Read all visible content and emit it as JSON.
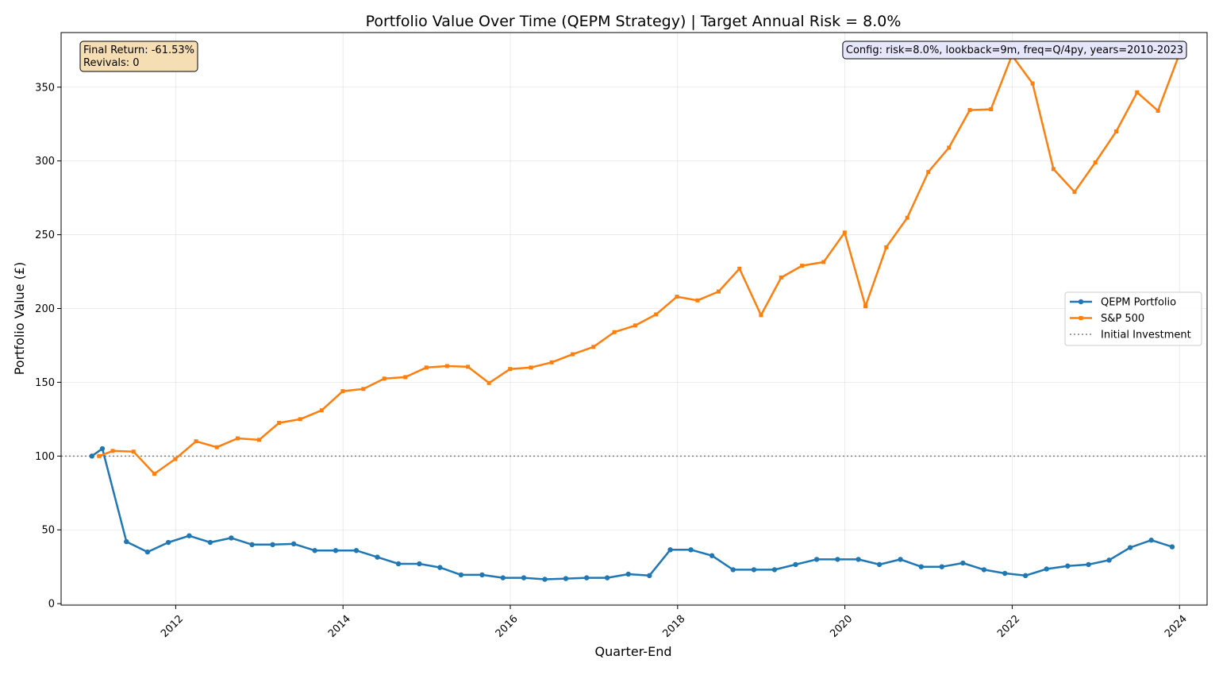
{
  "chart_data": {
    "type": "line",
    "title": "Portfolio Value Over Time (QEPM Strategy) | Target Annual Risk = 8.0%",
    "xlabel": "Quarter-End",
    "ylabel": "Portfolio Value (£)",
    "xlim": [
      2010.63,
      2024.33
    ],
    "ylim": [
      -1,
      387
    ],
    "x_ticks": [
      2012,
      2014,
      2016,
      2018,
      2020,
      2022,
      2024
    ],
    "x_tick_labels": [
      "2012",
      "2014",
      "2016",
      "2018",
      "2020",
      "2022",
      "2024"
    ],
    "y_ticks": [
      0,
      50,
      100,
      150,
      200,
      250,
      300,
      350
    ],
    "y_tick_labels": [
      "0",
      "50",
      "100",
      "150",
      "200",
      "250",
      "300",
      "350"
    ],
    "grid": true,
    "legend_position": "center-right",
    "series": [
      {
        "name": "QEPM Portfolio",
        "color": "#1f77b4",
        "marker": "circle",
        "x": [
          "2010-12-31",
          "2011-02-15",
          "2011-05-31",
          "2011-08-31",
          "2011-11-30",
          "2012-02-29",
          "2012-05-31",
          "2012-08-31",
          "2012-11-30",
          "2013-02-28",
          "2013-05-31",
          "2013-08-31",
          "2013-11-30",
          "2014-02-28",
          "2014-05-31",
          "2014-08-31",
          "2014-11-30",
          "2015-02-28",
          "2015-05-31",
          "2015-08-31",
          "2015-11-30",
          "2016-02-29",
          "2016-05-31",
          "2016-08-31",
          "2016-11-30",
          "2017-02-28",
          "2017-05-31",
          "2017-08-31",
          "2017-11-30",
          "2018-02-28",
          "2018-05-31",
          "2018-08-31",
          "2018-11-30",
          "2019-02-28",
          "2019-05-31",
          "2019-08-31",
          "2019-11-30",
          "2020-02-29",
          "2020-05-31",
          "2020-08-31",
          "2020-11-30",
          "2021-02-28",
          "2021-05-31",
          "2021-08-31",
          "2021-11-30",
          "2022-02-28",
          "2022-05-31",
          "2022-08-31",
          "2022-11-30",
          "2023-02-28",
          "2023-05-31",
          "2023-08-31",
          "2023-11-30"
        ],
        "values": [
          100,
          105,
          42,
          35,
          41.5,
          46,
          41.5,
          44.5,
          40,
          40,
          40.5,
          36,
          36,
          36,
          31.5,
          27,
          27,
          24.5,
          19.5,
          19.5,
          17.5,
          17.5,
          16.5,
          17,
          17.5,
          17.5,
          20,
          19,
          36.5,
          36.5,
          32.5,
          23,
          23,
          23,
          26.5,
          30,
          30,
          30,
          26.5,
          30,
          25,
          25,
          27.5,
          23,
          20.5,
          19,
          23.5,
          25.5,
          26.5,
          29.5,
          38,
          43,
          38.5
        ]
      },
      {
        "name": "S&P 500",
        "color": "#ff7f0e",
        "marker": "square",
        "x": [
          "2011-02-01",
          "2011-04-01",
          "2011-07-01",
          "2011-09-30",
          "2011-12-30",
          "2012-03-30",
          "2012-06-29",
          "2012-09-28",
          "2012-12-31",
          "2013-03-28",
          "2013-06-28",
          "2013-09-30",
          "2013-12-31",
          "2014-03-31",
          "2014-06-30",
          "2014-09-30",
          "2014-12-31",
          "2015-03-31",
          "2015-06-30",
          "2015-09-30",
          "2015-12-31",
          "2016-03-31",
          "2016-06-30",
          "2016-09-30",
          "2016-12-30",
          "2017-03-31",
          "2017-06-30",
          "2017-09-29",
          "2017-12-29",
          "2018-03-29",
          "2018-06-29",
          "2018-09-28",
          "2018-12-31",
          "2019-03-29",
          "2019-06-28",
          "2019-09-30",
          "2019-12-31",
          "2020-03-31",
          "2020-06-30",
          "2020-09-30",
          "2020-12-31",
          "2021-03-31",
          "2021-06-30",
          "2021-09-30",
          "2021-12-31",
          "2022-03-31",
          "2022-06-30",
          "2022-09-30",
          "2022-12-30",
          "2023-03-31",
          "2023-06-30",
          "2023-09-29",
          "2023-12-29"
        ],
        "values": [
          100,
          103.5,
          103,
          88,
          98,
          110,
          106,
          112,
          111,
          122.5,
          125,
          131,
          144,
          145.5,
          152.5,
          153.5,
          160,
          161,
          160.5,
          149.5,
          159,
          160,
          163.5,
          169,
          174,
          184,
          188.5,
          196,
          208,
          205.5,
          211.5,
          227,
          195.5,
          221,
          229,
          231.5,
          251.5,
          201.5,
          241.5,
          261.5,
          292.5,
          309,
          334.5,
          335,
          371.5,
          352.5,
          294.5,
          279,
          299,
          320,
          346.5,
          334,
          371.5
        ]
      },
      {
        "name": "Initial Investment",
        "color": "#808080",
        "style": "dotted",
        "y": 100
      }
    ],
    "annotations": [
      {
        "text_lines": [
          "Final Return: -61.53%",
          "Revivals: 0"
        ],
        "position": "top-left",
        "face": "#f5deb3"
      },
      {
        "text_lines": [
          "Config: risk=8.0%, lookback=9m, freq=Q/4py, years=2010-2023"
        ],
        "position": "top-right",
        "face": "#e6e6fa"
      }
    ]
  }
}
